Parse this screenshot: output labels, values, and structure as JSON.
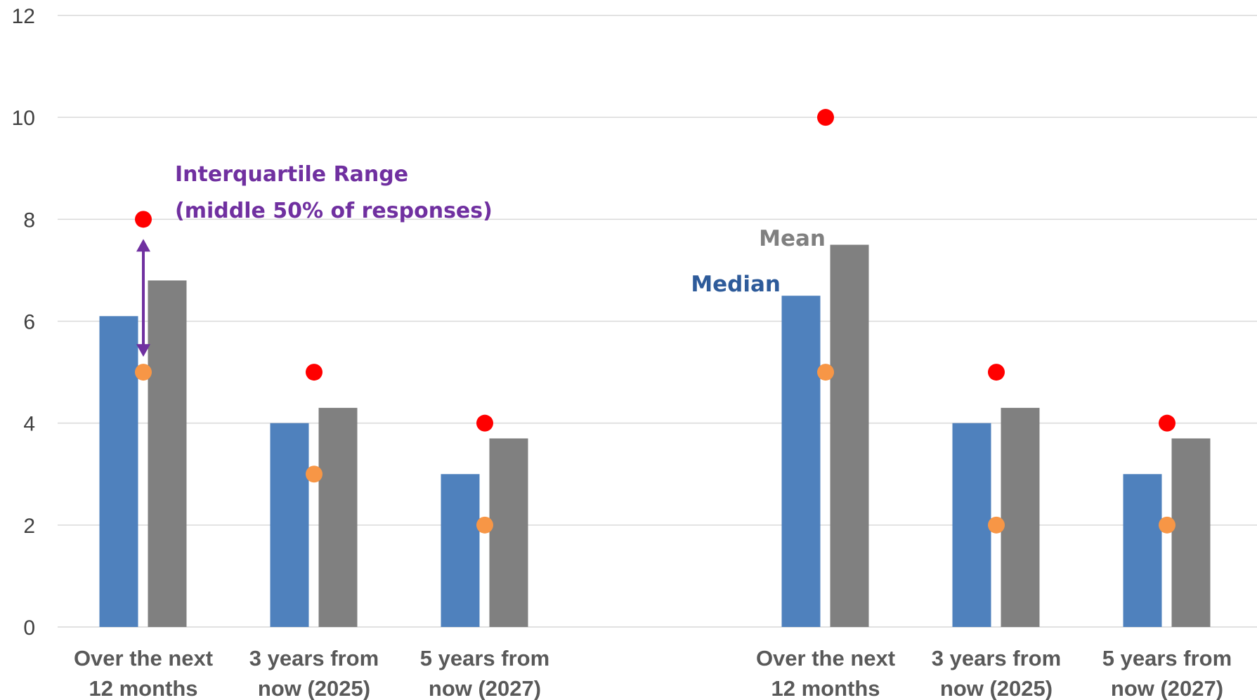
{
  "chart_data": {
    "type": "bar",
    "ylim": [
      0,
      12
    ],
    "yticks": [
      "0",
      "2",
      "4",
      "6",
      "8",
      "10",
      "12"
    ],
    "grid": true,
    "groups": [
      {
        "categories": [
          [
            "Over the next",
            "12 months"
          ],
          [
            "3 years from",
            "now (2025)"
          ],
          [
            "5 years from",
            "now (2027)"
          ]
        ],
        "median": [
          6.1,
          4,
          3
        ],
        "mean": [
          6.8,
          4.3,
          3.7
        ],
        "upper_quartile": [
          8,
          5,
          4
        ],
        "lower_quartile": [
          5,
          3,
          2
        ]
      },
      {
        "categories": [
          [
            "Over the next",
            "12 months"
          ],
          [
            "3 years from",
            "now (2025)"
          ],
          [
            "5 years from",
            "now (2027)"
          ]
        ],
        "median": [
          6.5,
          4,
          3
        ],
        "mean": [
          7.5,
          4.3,
          3.7
        ],
        "upper_quartile": [
          10,
          5,
          4
        ],
        "lower_quartile": [
          5,
          2,
          2
        ]
      }
    ],
    "annotations": {
      "iqr": [
        "Interquartile Range",
        "(middle 50% of responses)"
      ],
      "median": "Median",
      "mean": "Mean"
    },
    "colors": {
      "median": "#4F81BD",
      "mean": "#808080",
      "upper_quartile": "#FF0000",
      "lower_quartile": "#F79646",
      "arrow": "#7030A0",
      "grid": "#D9D9D9"
    }
  }
}
